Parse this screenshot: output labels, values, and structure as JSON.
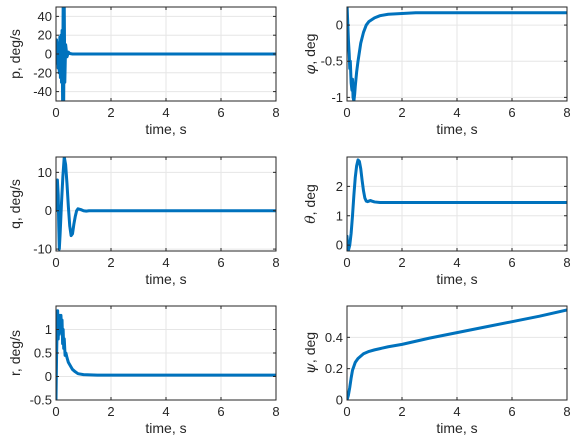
{
  "colors": {
    "line": "#0072bd",
    "axis": "#262626",
    "grid": "#e6e6e6"
  },
  "chart_data": [
    {
      "type": "line",
      "xlabel": "time, s",
      "ylabel": "p, deg/s",
      "xlim": [
        0,
        8
      ],
      "ylim": [
        -50,
        50
      ],
      "xticks": [
        0,
        2,
        4,
        6,
        8
      ],
      "yticks": [
        -40,
        -20,
        0,
        20,
        40
      ],
      "xtick_labels": [
        "0",
        "2",
        "4",
        "6",
        "8"
      ],
      "ytick_labels": [
        "-40",
        "-20",
        "0",
        "20",
        "40"
      ],
      "grid": true,
      "series": [
        {
          "x": [
            0,
            0.02,
            0.04,
            0.06,
            0.08,
            0.1,
            0.12,
            0.14,
            0.16,
            0.18,
            0.2,
            0.22,
            0.24,
            0.26,
            0.28,
            0.3,
            0.32,
            0.35,
            0.4,
            0.45,
            0.5,
            0.6,
            0.8,
            1.0,
            1.5,
            2,
            3,
            4,
            5,
            6,
            7,
            8
          ],
          "y": [
            0,
            15,
            -10,
            12,
            -15,
            10,
            -20,
            18,
            -25,
            20,
            -30,
            25,
            -50,
            52,
            -50,
            50,
            -30,
            10,
            -3,
            2,
            0.5,
            0,
            0,
            0,
            0,
            0,
            0,
            0,
            0,
            0,
            0,
            0
          ]
        }
      ]
    },
    {
      "type": "line",
      "xlabel": "time, s",
      "ylabel_symbol": "φ",
      "ylabel": ", deg",
      "xlim": [
        0,
        8
      ],
      "ylim": [
        -1.05,
        0.25
      ],
      "xticks": [
        0,
        2,
        4,
        6,
        8
      ],
      "yticks": [
        -1,
        -0.5,
        0
      ],
      "xtick_labels": [
        "0",
        "2",
        "4",
        "6",
        "8"
      ],
      "ytick_labels": [
        "-1",
        "-0.5",
        "0"
      ],
      "grid": true,
      "series": [
        {
          "x": [
            0,
            0.02,
            0.05,
            0.08,
            0.1,
            0.12,
            0.15,
            0.18,
            0.2,
            0.22,
            0.25,
            0.28,
            0.3,
            0.35,
            0.4,
            0.5,
            0.6,
            0.7,
            0.8,
            1.0,
            1.2,
            1.5,
            2.0,
            2.5,
            3,
            4,
            5,
            6,
            7,
            8
          ],
          "y": [
            0.3,
            0.1,
            -0.2,
            -0.4,
            -0.6,
            -0.5,
            -0.8,
            -0.9,
            -0.75,
            -1.0,
            -1.05,
            -0.95,
            -0.85,
            -0.65,
            -0.5,
            -0.25,
            -0.1,
            0.0,
            0.05,
            0.1,
            0.13,
            0.15,
            0.16,
            0.17,
            0.17,
            0.17,
            0.17,
            0.17,
            0.17,
            0.17
          ]
        }
      ]
    },
    {
      "type": "line",
      "xlabel": "time, s",
      "ylabel": "q, deg/s",
      "xlim": [
        0,
        8
      ],
      "ylim": [
        -10.5,
        14
      ],
      "xticks": [
        0,
        2,
        4,
        6,
        8
      ],
      "yticks": [
        -10,
        0,
        10
      ],
      "xtick_labels": [
        "0",
        "2",
        "4",
        "6",
        "8"
      ],
      "ytick_labels": [
        "-10",
        "0",
        "10"
      ],
      "grid": true,
      "series": [
        {
          "x": [
            0,
            0.02,
            0.05,
            0.08,
            0.1,
            0.12,
            0.15,
            0.2,
            0.25,
            0.3,
            0.35,
            0.4,
            0.45,
            0.5,
            0.55,
            0.6,
            0.65,
            0.7,
            0.75,
            0.8,
            0.9,
            1.0,
            1.1,
            1.2,
            1.5,
            2,
            3,
            4,
            5,
            6,
            7,
            8
          ],
          "y": [
            0,
            3,
            8,
            4,
            -4,
            -10,
            -6,
            2,
            9,
            14,
            12,
            7,
            1,
            -4,
            -6.5,
            -6,
            -3.5,
            -1.5,
            0,
            0.5,
            0.3,
            0,
            -0.1,
            0,
            0,
            0,
            0,
            0,
            0,
            0,
            0,
            0
          ]
        }
      ]
    },
    {
      "type": "line",
      "xlabel": "time, s",
      "ylabel_symbol": "θ",
      "ylabel": ", deg",
      "xlim": [
        0,
        8
      ],
      "ylim": [
        -0.2,
        3.0
      ],
      "xticks": [
        0,
        2,
        4,
        6,
        8
      ],
      "yticks": [
        0,
        1,
        2
      ],
      "xtick_labels": [
        "0",
        "2",
        "4",
        "6",
        "8"
      ],
      "ytick_labels": [
        "0",
        "1",
        "2"
      ],
      "grid": true,
      "series": [
        {
          "x": [
            0,
            0.03,
            0.06,
            0.1,
            0.15,
            0.2,
            0.25,
            0.3,
            0.35,
            0.4,
            0.45,
            0.5,
            0.55,
            0.6,
            0.65,
            0.7,
            0.75,
            0.8,
            0.85,
            0.9,
            1.0,
            1.2,
            1.5,
            2,
            3,
            4,
            5,
            6,
            7,
            8
          ],
          "y": [
            0.3,
            -0.1,
            -0.15,
            0.0,
            0.4,
            1.0,
            1.7,
            2.3,
            2.7,
            2.9,
            2.85,
            2.6,
            2.2,
            1.85,
            1.6,
            1.5,
            1.48,
            1.5,
            1.52,
            1.5,
            1.47,
            1.45,
            1.45,
            1.45,
            1.45,
            1.45,
            1.45,
            1.45,
            1.45,
            1.45
          ]
        }
      ]
    },
    {
      "type": "line",
      "xlabel": "time, s",
      "ylabel": "r, deg/s",
      "xlim": [
        0,
        8
      ],
      "ylim": [
        -0.5,
        1.5
      ],
      "xticks": [
        0,
        2,
        4,
        6,
        8
      ],
      "yticks": [
        -0.5,
        0,
        0.5,
        1
      ],
      "xtick_labels": [
        "0",
        "2",
        "4",
        "6",
        "8"
      ],
      "ytick_labels": [
        "-0.5",
        "0",
        "0.5",
        "1"
      ],
      "grid": true,
      "series": [
        {
          "x": [
            0,
            0.02,
            0.04,
            0.06,
            0.08,
            0.1,
            0.12,
            0.14,
            0.16,
            0.18,
            0.2,
            0.22,
            0.24,
            0.26,
            0.28,
            0.3,
            0.33,
            0.36,
            0.4,
            0.45,
            0.5,
            0.6,
            0.7,
            0.8,
            1.0,
            1.5,
            2,
            3,
            4,
            5,
            6,
            7,
            8
          ],
          "y": [
            -0.5,
            0.4,
            1.0,
            1.4,
            0.8,
            1.2,
            0.9,
            1.3,
            1.1,
            1.3,
            1.0,
            1.2,
            0.7,
            1.0,
            0.6,
            0.8,
            0.45,
            0.5,
            0.4,
            0.3,
            0.25,
            0.15,
            0.1,
            0.06,
            0.04,
            0.03,
            0.03,
            0.03,
            0.03,
            0.03,
            0.03,
            0.03,
            0.03
          ]
        }
      ]
    },
    {
      "type": "line",
      "xlabel": "time, s",
      "ylabel_symbol": "ψ",
      "ylabel": ", deg",
      "xlim": [
        0,
        8
      ],
      "ylim": [
        0,
        0.6
      ],
      "xticks": [
        0,
        2,
        4,
        6,
        8
      ],
      "yticks": [
        0,
        0.2,
        0.4
      ],
      "xtick_labels": [
        "0",
        "2",
        "4",
        "6",
        "8"
      ],
      "ytick_labels": [
        "0",
        "0.2",
        "0.4"
      ],
      "grid": true,
      "series": [
        {
          "x": [
            0,
            0.05,
            0.1,
            0.15,
            0.2,
            0.3,
            0.4,
            0.5,
            0.6,
            0.8,
            1.0,
            1.5,
            2,
            3,
            4,
            5,
            6,
            7,
            8
          ],
          "y": [
            0,
            0.03,
            0.08,
            0.14,
            0.19,
            0.24,
            0.265,
            0.28,
            0.295,
            0.31,
            0.32,
            0.34,
            0.355,
            0.395,
            0.43,
            0.465,
            0.5,
            0.535,
            0.575
          ]
        }
      ]
    }
  ]
}
